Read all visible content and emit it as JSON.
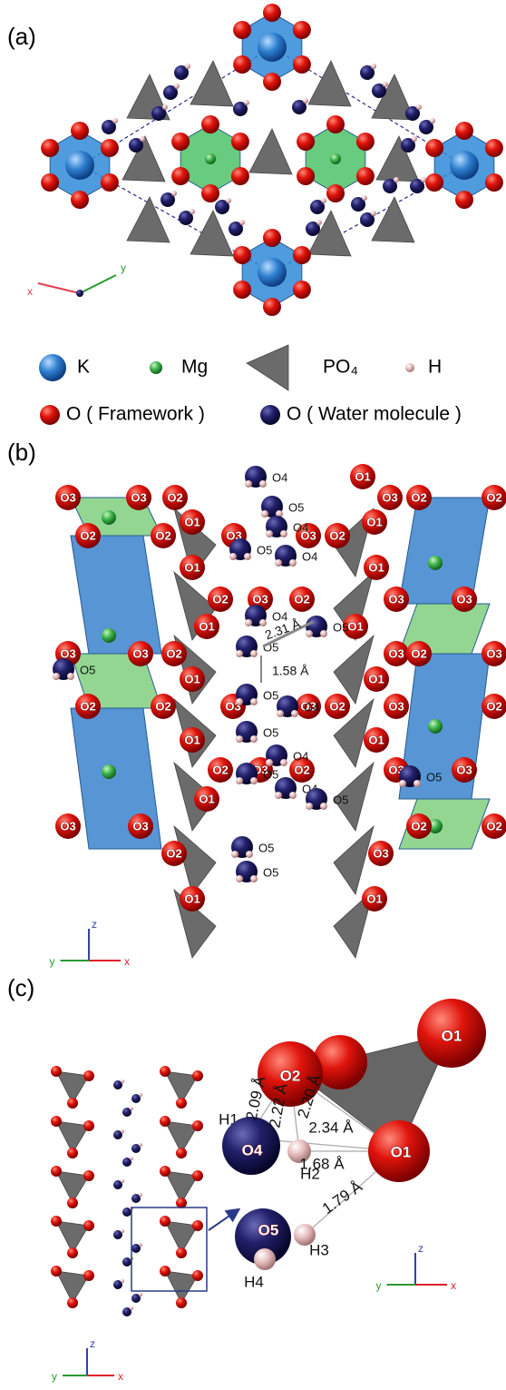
{
  "panel_a": {
    "label": "(a)",
    "axes": {
      "x": "x",
      "y": "y"
    },
    "legend": [
      "K",
      "Mg",
      "PO₄",
      "H",
      "O ( Framework )",
      "O ( Water molecule )"
    ]
  },
  "panel_b": {
    "label": "(b)",
    "atoms": [
      "O3",
      "O3",
      "O2",
      "O1",
      "O3",
      "O2",
      "O2",
      "O1",
      "O1",
      "O2",
      "O2",
      "O3",
      "O3",
      "O2",
      "O1",
      "O1",
      "O2",
      "O3",
      "O2",
      "O3",
      "O3",
      "O1",
      "O1",
      "O3",
      "O3",
      "O2",
      "O3",
      "O3",
      "O2",
      "O3",
      "O1",
      "O1",
      "O2",
      "O2",
      "O3",
      "O3",
      "O2",
      "O2",
      "O1",
      "O1",
      "O2",
      "O3",
      "O2",
      "O3",
      "O3",
      "O3",
      "O3",
      "O2",
      "O1",
      "O3",
      "O2",
      "O2",
      "O1",
      "O1",
      "O4",
      "O5",
      "O4",
      "O5",
      "O4",
      "O4",
      "O5",
      "O5",
      "O5",
      "O4",
      "O5",
      "O4",
      "O5",
      "O4",
      "O5",
      "O5",
      "O5",
      "O5",
      "O5"
    ],
    "distances": [
      "2.31 Å",
      "1.58 Å"
    ],
    "axes": {
      "z": "z",
      "y": "y",
      "x": "x"
    }
  },
  "panel_c": {
    "label": "(c)",
    "atoms": [
      "O1",
      "O2",
      "O1",
      "H1",
      "O4",
      "H2",
      "O5",
      "H3",
      "H4"
    ],
    "distances": [
      "2.09 Å",
      "2.22 Å",
      "2.20 Å",
      "2.34 Å",
      "1.68 Å",
      "1.79 Å"
    ],
    "axes_left": {
      "z": "z",
      "y": "y",
      "x": "x"
    },
    "axes_right": {
      "z": "z",
      "y": "y",
      "x": "x"
    }
  }
}
